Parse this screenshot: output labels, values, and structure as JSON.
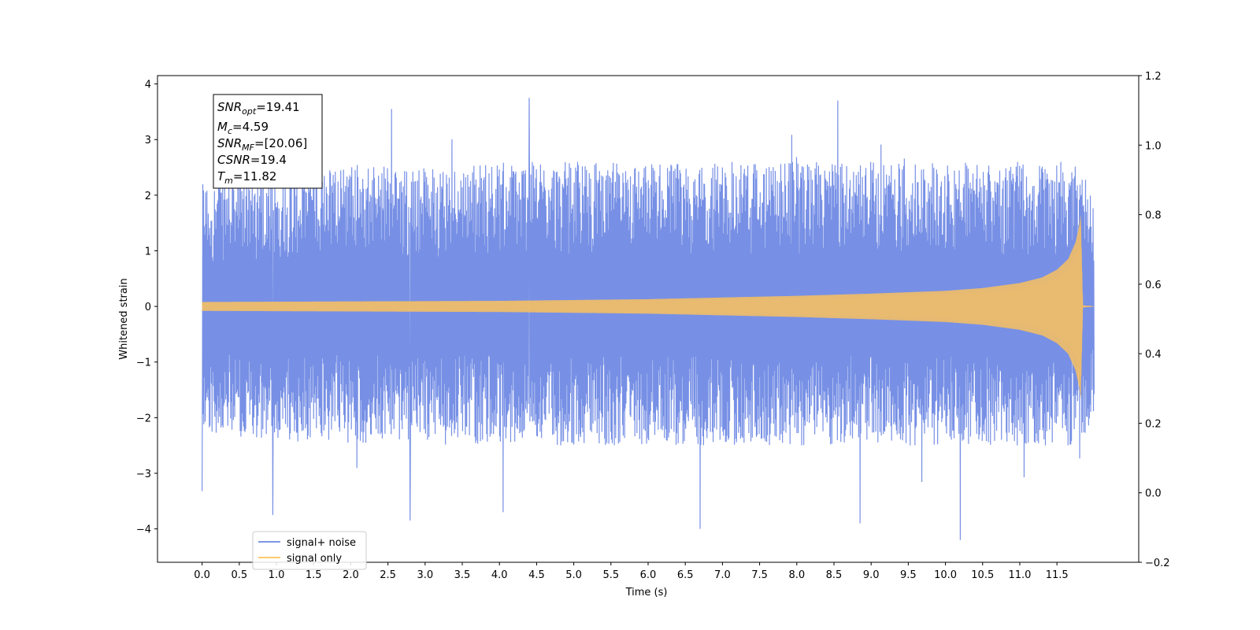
{
  "chart_data": {
    "type": "line",
    "title": "",
    "xlabel": "Time (s)",
    "ylabel": "Whitened strain",
    "xlim": [
      -0.6,
      12.6
    ],
    "ylim": [
      -4.6,
      4.15
    ],
    "y2lim": [
      -0.2,
      1.2
    ],
    "x_ticks": [
      0.0,
      0.5,
      1.0,
      1.5,
      2.0,
      2.5,
      3.0,
      3.5,
      4.0,
      4.5,
      5.0,
      5.5,
      6.0,
      6.5,
      7.0,
      7.5,
      8.0,
      8.5,
      9.0,
      9.5,
      10.0,
      10.5,
      11.0,
      11.5
    ],
    "x_tick_labels": [
      "0.0",
      "0.5",
      "1.0",
      "1.5",
      "2.0",
      "2.5",
      "3.0",
      "3.5",
      "4.0",
      "4.5",
      "5.0",
      "5.5",
      "6.0",
      "6.5",
      "7.0",
      "7.5",
      "8.0",
      "8.5",
      "9.0",
      "9.5",
      "10.0",
      "10.5",
      "11.0",
      "11.5"
    ],
    "y_ticks": [
      -4,
      -3,
      -2,
      -1,
      0,
      1,
      2,
      3,
      4
    ],
    "y_tick_labels": [
      "−4",
      "−3",
      "−2",
      "−1",
      "0",
      "1",
      "2",
      "3",
      "4"
    ],
    "y2_ticks": [
      -0.2,
      0.0,
      0.2,
      0.4,
      0.6,
      0.8,
      1.0,
      1.2
    ],
    "y2_tick_labels": [
      "−0.2",
      "0.0",
      "0.2",
      "0.4",
      "0.6",
      "0.8",
      "1.0",
      "1.2"
    ],
    "series": [
      {
        "name": "signal+ noise",
        "color": "#6b87e3",
        "t_range": [
          0.0,
          12.0
        ],
        "envelope": {
          "t": [
            0.0,
            1.0,
            2.0,
            3.0,
            4.0,
            5.0,
            6.0,
            7.0,
            8.0,
            9.0,
            10.0,
            11.0,
            11.5,
            11.82,
            12.0
          ],
          "upper": [
            2.2,
            2.4,
            2.6,
            2.5,
            2.6,
            2.6,
            2.6,
            2.6,
            2.6,
            2.6,
            2.6,
            2.6,
            2.6,
            2.6,
            1.8
          ],
          "lower": [
            -2.3,
            -2.4,
            -2.5,
            -2.4,
            -2.5,
            -2.5,
            -2.5,
            -2.5,
            -2.5,
            -2.5,
            -2.5,
            -2.5,
            -2.5,
            -2.5,
            -1.9
          ]
        },
        "spikes": [
          {
            "t": 0.0,
            "y": -3.32
          },
          {
            "t": 0.95,
            "y": -3.75
          },
          {
            "t": 2.55,
            "y": 3.55
          },
          {
            "t": 2.8,
            "y": -3.85
          },
          {
            "t": 4.05,
            "y": -3.7
          },
          {
            "t": 4.4,
            "y": 3.75
          },
          {
            "t": 6.7,
            "y": -4.0
          },
          {
            "t": 8.55,
            "y": 3.7
          },
          {
            "t": 8.85,
            "y": -3.9
          },
          {
            "t": 10.2,
            "y": -4.2
          }
        ]
      },
      {
        "name": "signal only",
        "color": "#ffc35a",
        "t_range": [
          0.0,
          12.0
        ],
        "envelope": {
          "t": [
            0.0,
            2.0,
            4.0,
            6.0,
            8.0,
            9.0,
            10.0,
            10.5,
            11.0,
            11.3,
            11.5,
            11.65,
            11.75,
            11.8,
            11.82,
            11.85,
            12.0
          ],
          "amp": [
            0.08,
            0.09,
            0.1,
            0.13,
            0.19,
            0.23,
            0.28,
            0.33,
            0.42,
            0.52,
            0.66,
            0.85,
            1.15,
            1.45,
            1.65,
            0.02,
            0.0
          ]
        }
      }
    ],
    "legend": {
      "placement": "lower-left",
      "entries": [
        "signal+ noise",
        "signal only"
      ]
    },
    "annotation": {
      "snr_opt": {
        "base": "SNR",
        "sub": "opt",
        "value": "=19.41"
      },
      "mc": {
        "base": "M",
        "sub": "c",
        "value": "=4.59"
      },
      "snr_mf": {
        "base": "SNR",
        "sub": "MF",
        "value": "=[20.06]"
      },
      "csnr": {
        "base": "CSNR",
        "value": "=19.4"
      },
      "tm": {
        "base": "T",
        "sub": "m",
        "value": "=11.82"
      }
    },
    "grid": false
  }
}
